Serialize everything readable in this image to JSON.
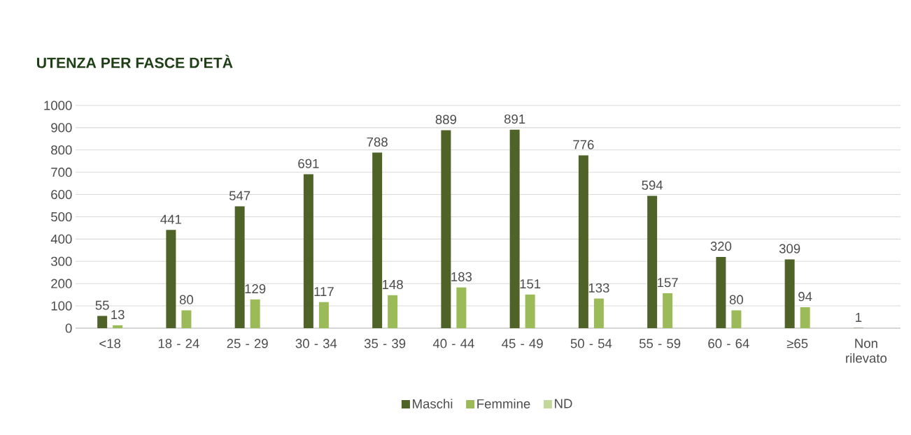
{
  "chart_data": {
    "type": "bar",
    "title": "UTENZA PER FASCE D'ETÀ",
    "categories": [
      "<18",
      "18 - 24",
      "25 - 29",
      "30 - 34",
      "35 - 39",
      "40 - 44",
      "45 - 49",
      "50 - 54",
      "55 - 59",
      "60 - 64",
      "≥65",
      "Non rilevato"
    ],
    "series": [
      {
        "name": "Maschi",
        "color": "#4f6228",
        "values": [
          55,
          441,
          547,
          691,
          788,
          889,
          891,
          776,
          594,
          320,
          309,
          1
        ]
      },
      {
        "name": "Femmine",
        "color": "#9bbb59",
        "values": [
          13,
          80,
          129,
          117,
          148,
          183,
          151,
          133,
          157,
          80,
          94,
          null
        ]
      },
      {
        "name": "ND",
        "color": "#c4d79b",
        "values": [
          null,
          null,
          null,
          null,
          null,
          null,
          null,
          null,
          null,
          null,
          null,
          null
        ]
      }
    ],
    "ylim": [
      0,
      1000
    ],
    "yticks": [
      0,
      100,
      200,
      300,
      400,
      500,
      600,
      700,
      800,
      900,
      1000
    ],
    "grid": "y",
    "legend": "bottom",
    "data_labels": true
  }
}
